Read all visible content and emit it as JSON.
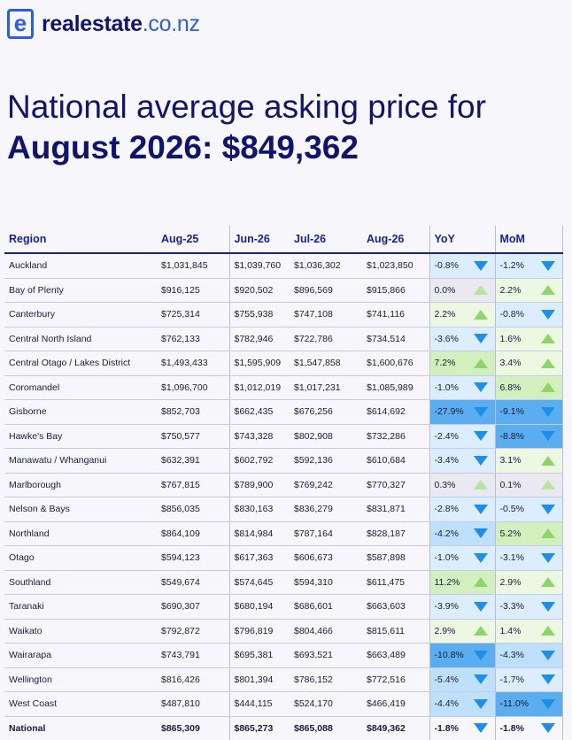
{
  "brand": {
    "name": "realestate",
    "tld": ".co.nz",
    "mark": "e"
  },
  "headline": {
    "line1": "National average asking price for",
    "line2": "August 2026: $849,362"
  },
  "table": {
    "headers": [
      "Region",
      "Aug-25",
      "Jun-26",
      "Jul-26",
      "Aug-26",
      "YoY",
      "MoM"
    ],
    "rows": [
      {
        "region": "Auckland",
        "aug25": "$1,031,845",
        "jun26": "$1,039,760",
        "jul26": "$1,036,302",
        "aug26": "$1,023,850",
        "yoy": "-0.8%",
        "mom": "-1.2%"
      },
      {
        "region": "Bay of Plenty",
        "aug25": "$916,125",
        "jun26": "$920,502",
        "jul26": "$896,569",
        "aug26": "$915,866",
        "yoy": "0.0%",
        "mom": "2.2%"
      },
      {
        "region": "Canterbury",
        "aug25": "$725,314",
        "jun26": "$755,938",
        "jul26": "$747,108",
        "aug26": "$741,116",
        "yoy": "2.2%",
        "mom": "-0.8%"
      },
      {
        "region": "Central North Island",
        "aug25": "$762,133",
        "jun26": "$782,946",
        "jul26": "$722,786",
        "aug26": "$734,514",
        "yoy": "-3.6%",
        "mom": "1.6%"
      },
      {
        "region": "Central Otago / Lakes District",
        "aug25": "$1,493,433",
        "jun26": "$1,595,909",
        "jul26": "$1,547,858",
        "aug26": "$1,600,676",
        "yoy": "7.2%",
        "mom": "3.4%"
      },
      {
        "region": "Coromandel",
        "aug25": "$1,096,700",
        "jun26": "$1,012,019",
        "jul26": "$1,017,231",
        "aug26": "$1,085,989",
        "yoy": "-1.0%",
        "mom": "6.8%"
      },
      {
        "region": "Gisborne",
        "aug25": "$852,703",
        "jun26": "$662,435",
        "jul26": "$676,256",
        "aug26": "$614,692",
        "yoy": "-27.9%",
        "mom": "-9.1%"
      },
      {
        "region": "Hawke's Bay",
        "aug25": "$750,577",
        "jun26": "$743,328",
        "jul26": "$802,908",
        "aug26": "$732,286",
        "yoy": "-2.4%",
        "mom": "-8.8%"
      },
      {
        "region": "Manawatu / Whanganui",
        "aug25": "$632,391",
        "jun26": "$602,792",
        "jul26": "$592,136",
        "aug26": "$610,684",
        "yoy": "-3.4%",
        "mom": "3.1%"
      },
      {
        "region": "Marlborough",
        "aug25": "$767,815",
        "jun26": "$789,900",
        "jul26": "$769,242",
        "aug26": "$770,327",
        "yoy": "0.3%",
        "mom": "0.1%"
      },
      {
        "region": "Nelson & Bays",
        "aug25": "$856,035",
        "jun26": "$830,163",
        "jul26": "$836,279",
        "aug26": "$831,871",
        "yoy": "-2.8%",
        "mom": "-0.5%"
      },
      {
        "region": "Northland",
        "aug25": "$864,109",
        "jun26": "$814,984",
        "jul26": "$787,164",
        "aug26": "$828,187",
        "yoy": "-4.2%",
        "mom": "5.2%"
      },
      {
        "region": "Otago",
        "aug25": "$594,123",
        "jun26": "$617,363",
        "jul26": "$606,673",
        "aug26": "$587,898",
        "yoy": "-1.0%",
        "mom": "-3.1%"
      },
      {
        "region": "Southland",
        "aug25": "$549,674",
        "jun26": "$574,645",
        "jul26": "$594,310",
        "aug26": "$611,475",
        "yoy": "11.2%",
        "mom": "2.9%"
      },
      {
        "region": "Taranaki",
        "aug25": "$690,307",
        "jun26": "$680,194",
        "jul26": "$686,601",
        "aug26": "$663,603",
        "yoy": "-3.9%",
        "mom": "-3.3%"
      },
      {
        "region": "Waikato",
        "aug25": "$792,872",
        "jun26": "$796,819",
        "jul26": "$804,466",
        "aug26": "$815,611",
        "yoy": "2.9%",
        "mom": "1.4%"
      },
      {
        "region": "Wairarapa",
        "aug25": "$743,791",
        "jun26": "$695,381",
        "jul26": "$693,521",
        "aug26": "$663,489",
        "yoy": "-10.8%",
        "mom": "-4.3%"
      },
      {
        "region": "Wellington",
        "aug25": "$816,426",
        "jun26": "$801,394",
        "jul26": "$786,152",
        "aug26": "$772,516",
        "yoy": "-5.4%",
        "mom": "-1.7%"
      },
      {
        "region": "West Coast",
        "aug25": "$487,810",
        "jun26": "$444,115",
        "jul26": "$524,170",
        "aug26": "$466,419",
        "yoy": "-4.4%",
        "mom": "-11.0%"
      }
    ],
    "national": {
      "region": "National",
      "aug25": "$865,309",
      "jun26": "$865,273",
      "jul26": "$865,088",
      "aug26": "$849,362",
      "yoy": "-1.8%",
      "mom": "-1.8%"
    }
  },
  "colors": {
    "brand_blue": "#2b5bf3",
    "navy": "#0f1470",
    "header_blue": "#17229a",
    "down_arrow": "#1e8fe8",
    "up_arrow": "#8fd46a"
  }
}
